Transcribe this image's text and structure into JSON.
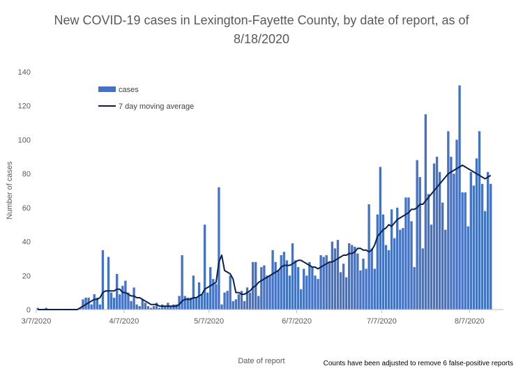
{
  "chart_data": {
    "type": "bar",
    "title": "New COVID-19 cases in Lexington-Fayette County, by date of report, as of 8/18/2020",
    "xlabel": "Date of report",
    "ylabel": "Number of cases",
    "footnote": "Counts have been adjusted to remove 6 false-positive reports",
    "x_start": "3/7/2020",
    "x_end": "8/18/2020",
    "x_ticks": [
      "3/7/2020",
      "4/7/2020",
      "5/7/2020",
      "6/7/2020",
      "7/7/2020",
      "8/7/2020"
    ],
    "y_ticks": [
      0,
      20,
      40,
      60,
      80,
      100,
      120,
      140
    ],
    "ylim": [
      0,
      140
    ],
    "grid": false,
    "legend_position": "top-left",
    "series": [
      {
        "name": "cases",
        "kind": "bar",
        "color": "#4472C4",
        "values": [
          1,
          0,
          0,
          1,
          0,
          0,
          0,
          0,
          0,
          0,
          0,
          0,
          0,
          0,
          0,
          1,
          6,
          7,
          7,
          3,
          9,
          7,
          3,
          35,
          0,
          31,
          10,
          7,
          21,
          9,
          14,
          17,
          10,
          5,
          13,
          3,
          2,
          6,
          4,
          2,
          1,
          2,
          4,
          1,
          3,
          2,
          4,
          2,
          3,
          3,
          8,
          32,
          8,
          7,
          7,
          20,
          7,
          16,
          9,
          50,
          10,
          25,
          18,
          15,
          72,
          3,
          10,
          11,
          20,
          5,
          6,
          9,
          11,
          5,
          13,
          10,
          28,
          28,
          8,
          25,
          26,
          20,
          20,
          35,
          28,
          23,
          32,
          34,
          29,
          20,
          39,
          29,
          25,
          12,
          24,
          20,
          28,
          25,
          20,
          18,
          32,
          31,
          32,
          28,
          40,
          36,
          41,
          22,
          27,
          19,
          39,
          38,
          37,
          33,
          23,
          30,
          24,
          62,
          36,
          24,
          56,
          84,
          56,
          38,
          35,
          59,
          42,
          60,
          47,
          48,
          66,
          66,
          52,
          25,
          88,
          78,
          36,
          115,
          68,
          50,
          86,
          90,
          81,
          63,
          47,
          105,
          90,
          80,
          100,
          132,
          69,
          69,
          49,
          81,
          73,
          89,
          105,
          74,
          58,
          81,
          74
        ],
        "start_index": 0
      },
      {
        "name": "7 day moving average",
        "kind": "line",
        "color": "#0B1F4F",
        "values": [
          0,
          0,
          0,
          0,
          0,
          0,
          0,
          0,
          0,
          0,
          0,
          0,
          0,
          0,
          0,
          1,
          2,
          3,
          4,
          5,
          6,
          6,
          7,
          10,
          11,
          11,
          11,
          11,
          12,
          12,
          10,
          10,
          9,
          8,
          8,
          7,
          7,
          6,
          5,
          4,
          3,
          3,
          3,
          2,
          2,
          2,
          2,
          2,
          2,
          2,
          3,
          5,
          6,
          6,
          6,
          7,
          7,
          8,
          9,
          12,
          13,
          14,
          15,
          16,
          28,
          32,
          23,
          22,
          21,
          18,
          10,
          10,
          9,
          9,
          10,
          11,
          13,
          14,
          16,
          17,
          18,
          19,
          20,
          21,
          22,
          23,
          25,
          26,
          26,
          26,
          27,
          28,
          29,
          29,
          28,
          27,
          26,
          25,
          25,
          24,
          25,
          26,
          27,
          28,
          28,
          29,
          30,
          31,
          32,
          32,
          33,
          33,
          34,
          36,
          36,
          35,
          35,
          34,
          35,
          38,
          43,
          45,
          47,
          48,
          50,
          49,
          51,
          53,
          54,
          55,
          56,
          57,
          59,
          59,
          60,
          62,
          62,
          64,
          66,
          68,
          70,
          72,
          74,
          76,
          78,
          80,
          81,
          82,
          83,
          84,
          85,
          84,
          83,
          82,
          81,
          80,
          79,
          78,
          77,
          78,
          79
        ]
      }
    ]
  }
}
